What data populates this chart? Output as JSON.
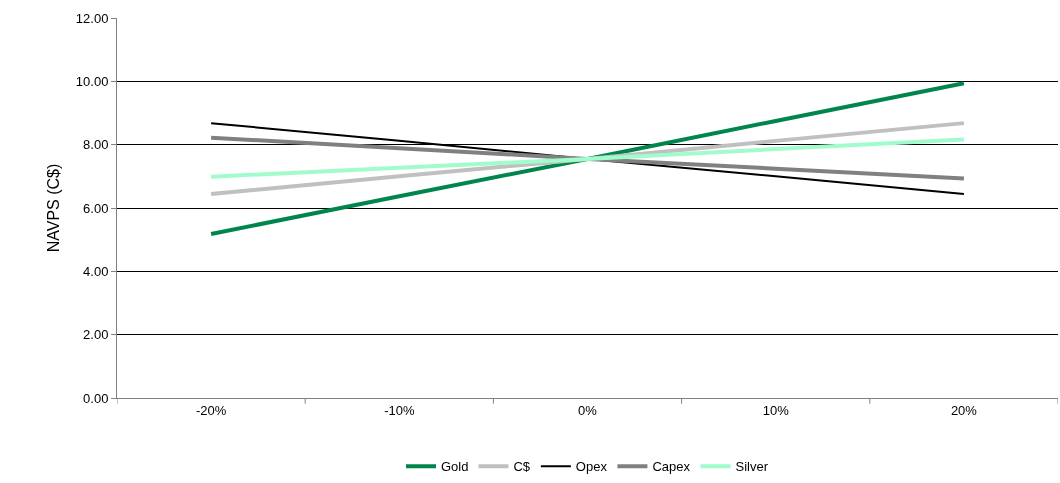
{
  "chart_data": {
    "type": "line",
    "ylabel": "NAVPS (C$)",
    "categories": [
      "-20%",
      "-10%",
      "0%",
      "10%",
      "20%"
    ],
    "series": [
      {
        "name": "Gold",
        "color": "#00854a",
        "values": [
          5.18,
          6.37,
          7.55,
          8.75,
          9.94
        ]
      },
      {
        "name": "C$",
        "color": "#c0c0c0",
        "values": [
          6.44,
          7.0,
          7.55,
          8.12,
          8.68
        ]
      },
      {
        "name": "Opex",
        "color": "#000000",
        "values": [
          8.68,
          8.12,
          7.55,
          7.0,
          6.44
        ]
      },
      {
        "name": "Capex",
        "color": "#808080",
        "values": [
          8.22,
          7.89,
          7.55,
          7.24,
          6.93
        ]
      },
      {
        "name": "Silver",
        "color": "#a0fccc",
        "values": [
          6.99,
          7.27,
          7.55,
          7.86,
          8.16
        ]
      }
    ],
    "ylim": [
      0,
      12
    ],
    "yticks": [
      {
        "value": 0,
        "label": "0.00"
      },
      {
        "value": 2,
        "label": "2.00"
      },
      {
        "value": 4,
        "label": "4.00"
      },
      {
        "value": 6,
        "label": "6.00"
      },
      {
        "value": 8,
        "label": "8.00"
      },
      {
        "value": 10,
        "label": "10.00"
      },
      {
        "value": 12,
        "label": "12.00"
      }
    ],
    "grid": "y",
    "legend": "bottom",
    "marker": "none",
    "line_style": "solid"
  }
}
